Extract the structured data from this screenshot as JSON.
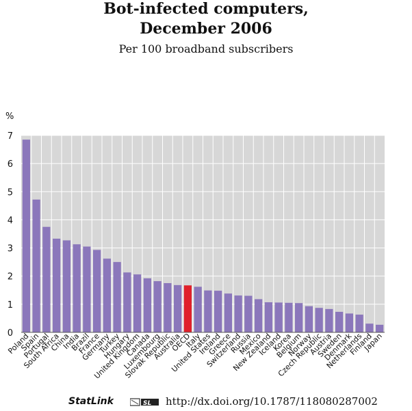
{
  "title_line1": "Bot-infected computers,",
  "title_line2": "December 2006",
  "subtitle": "Per 100 broadband subscribers",
  "footer": {
    "statlink": "StatLink",
    "logo": "statlink-logo-icon",
    "doi": "http://dx.doi.org/10.1787/118080287002"
  },
  "colors": {
    "bar": "#8b77bb",
    "highlight": "#e0202a",
    "plot_bg": "#d7d7d7",
    "grid": "#ffffff"
  },
  "chart_data": {
    "type": "bar",
    "ylabel": "%",
    "ylim": [
      0,
      7
    ],
    "yticks": [
      0,
      1,
      2,
      3,
      4,
      5,
      6,
      7
    ],
    "grid": true,
    "highlight": "OECD",
    "categories": [
      "Poland",
      "Spain",
      "Portugal",
      "South Africa",
      "China",
      "India",
      "Brazil",
      "France",
      "Germany",
      "Turkey",
      "Hungary",
      "United Kingdom",
      "Canada",
      "Luxembourg",
      "Slovak Republic",
      "Australia",
      "OECD",
      "Italy",
      "United States",
      "Ireland",
      "Greece",
      "Switzerland",
      "Russia",
      "Mexico",
      "New Zealand",
      "Iceland",
      "Korea",
      "Belgium",
      "Norway",
      "Czech Republic",
      "Austria",
      "Sweden",
      "Denmark",
      "Netherlands",
      "Finland",
      "Japan"
    ],
    "values": [
      6.85,
      4.72,
      3.75,
      3.33,
      3.27,
      3.13,
      3.05,
      2.93,
      2.62,
      2.5,
      2.13,
      2.06,
      1.92,
      1.82,
      1.75,
      1.68,
      1.67,
      1.62,
      1.49,
      1.48,
      1.38,
      1.31,
      1.3,
      1.18,
      1.07,
      1.06,
      1.05,
      1.04,
      0.93,
      0.87,
      0.83,
      0.73,
      0.67,
      0.63,
      0.31,
      0.27
    ]
  }
}
